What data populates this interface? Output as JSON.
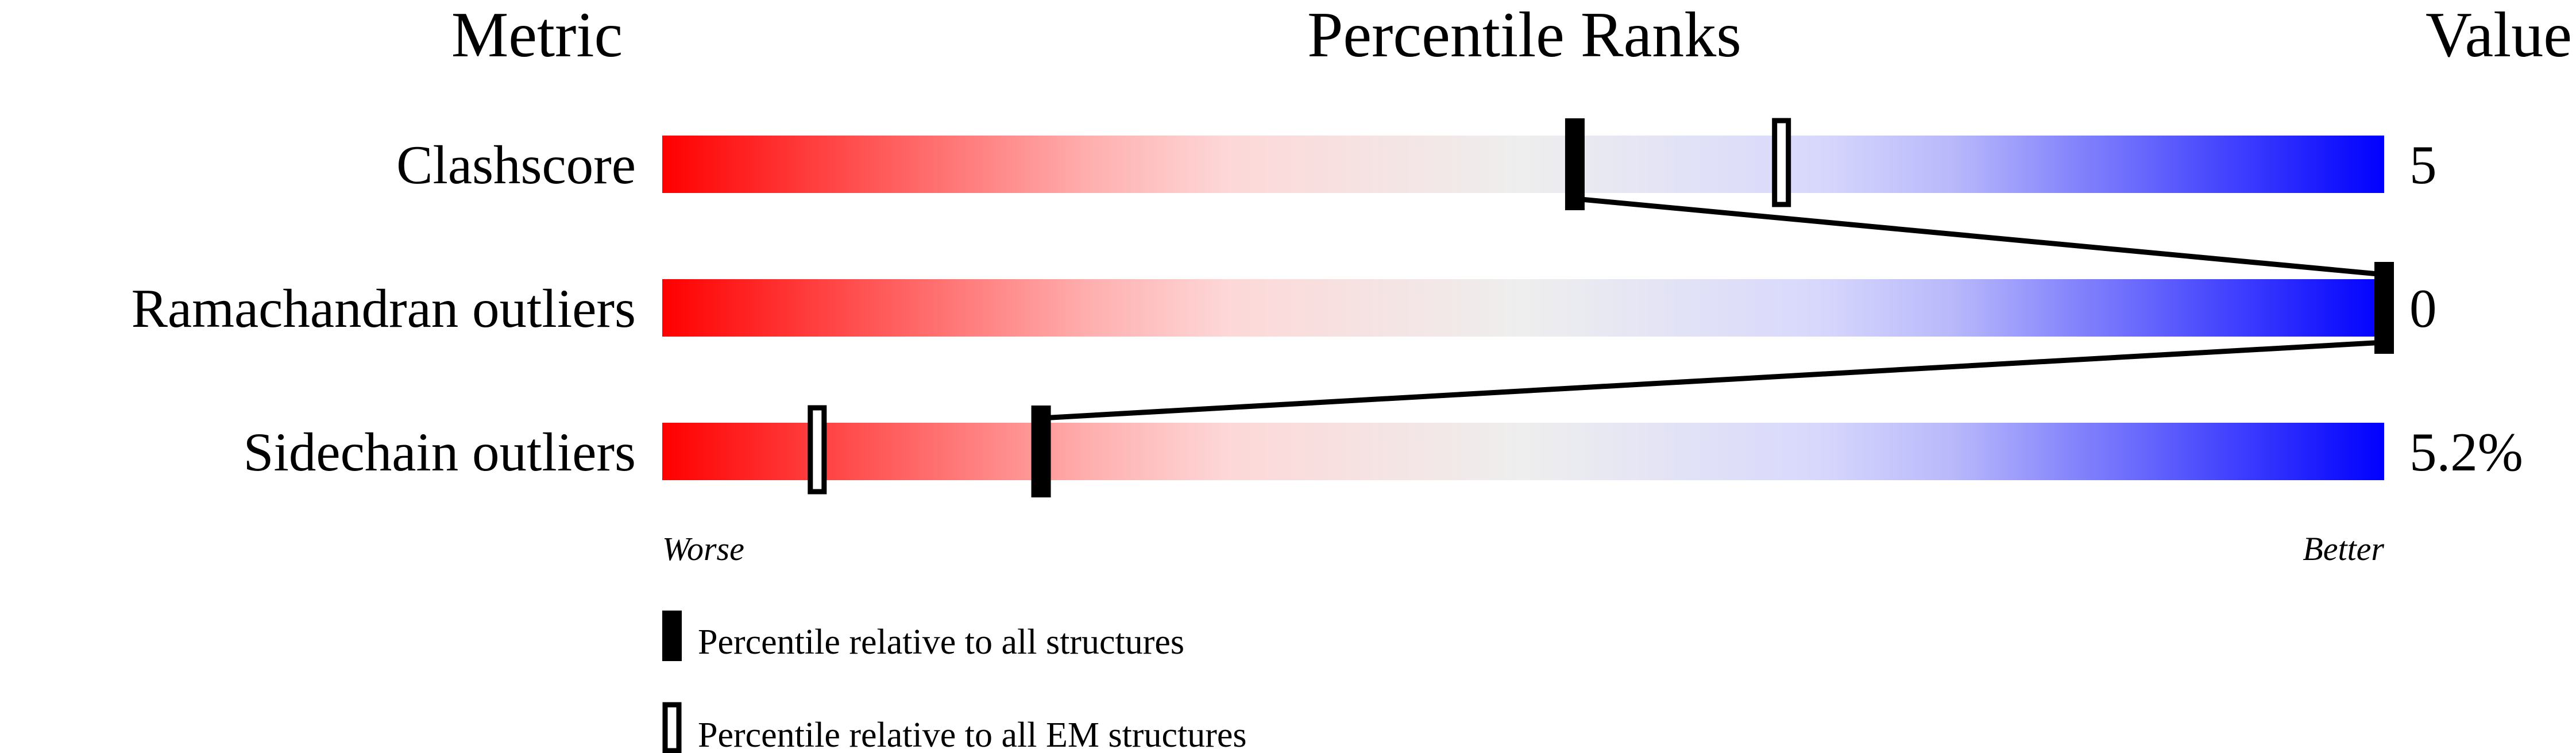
{
  "chart_data": {
    "type": "percentile-bar",
    "headers": {
      "metric": "Metric",
      "ranks": "Percentile Ranks",
      "value": "Value"
    },
    "xlim": [
      0,
      100
    ],
    "scale_labels": {
      "low": "Worse",
      "high": "Better"
    },
    "gradient_colors": [
      "#ff0000",
      "#eeeeee",
      "#0000ff"
    ],
    "rows": [
      {
        "metric": "Clashscore",
        "value": "5",
        "percentile_all": 53,
        "percentile_em": 65
      },
      {
        "metric": "Ramachandran outliers",
        "value": "0",
        "percentile_all": 100,
        "percentile_em": 100
      },
      {
        "metric": "Sidechain outliers",
        "value": "5.2%",
        "percentile_all": 22,
        "percentile_em": 9
      }
    ],
    "legend": [
      {
        "marker": "filled",
        "label": "Percentile relative to all structures"
      },
      {
        "marker": "hollow",
        "label": "Percentile relative to all EM structures"
      }
    ]
  }
}
